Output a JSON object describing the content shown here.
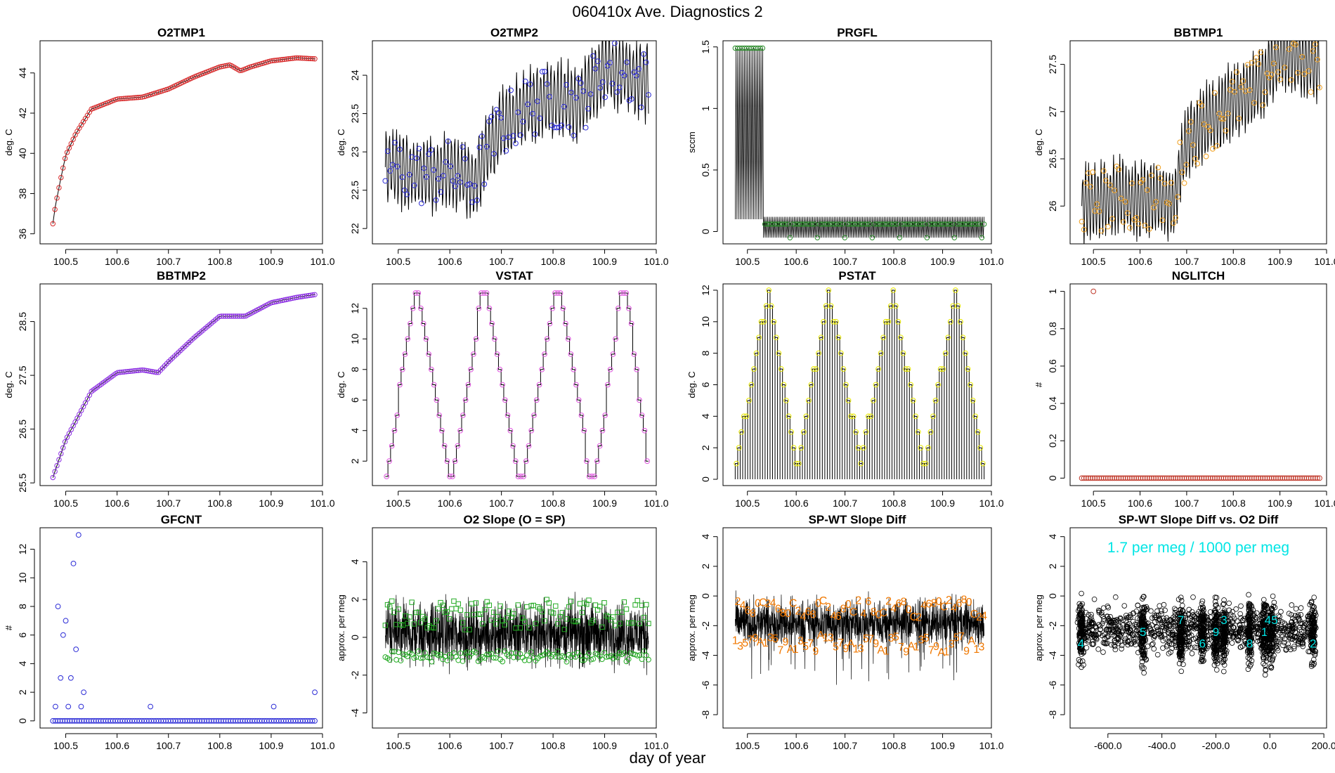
{
  "page": {
    "title": "060410x   Ave. Diagnostics 2",
    "xlabel": "day of year"
  },
  "chart_data": [
    {
      "id": "o2tmp1",
      "type": "line",
      "title": "O2TMP1",
      "ylabel": "deg. C",
      "xlim": [
        100.45,
        101.0
      ],
      "ylim": [
        35.5,
        45.6
      ],
      "xticks": [
        100.5,
        100.6,
        100.7,
        100.8,
        100.9,
        101.0
      ],
      "yticks": [
        36,
        38,
        40,
        42,
        44
      ],
      "marker": "circle",
      "marker_color": "#d62728",
      "x": [
        100.475,
        100.48,
        100.49,
        100.5,
        100.52,
        100.55,
        100.6,
        100.65,
        100.7,
        100.75,
        100.8,
        100.82,
        100.84,
        100.86,
        100.9,
        100.95,
        100.985
      ],
      "values": [
        36.5,
        37.4,
        38.7,
        39.9,
        41.0,
        42.2,
        42.7,
        42.8,
        43.2,
        43.8,
        44.3,
        44.4,
        44.1,
        44.3,
        44.6,
        44.75,
        44.7
      ]
    },
    {
      "id": "o2tmp2",
      "type": "line",
      "title": "O2TMP2",
      "ylabel": "deg. C",
      "xlim": [
        100.45,
        101.0
      ],
      "ylim": [
        21.8,
        24.45
      ],
      "xticks": [
        100.5,
        100.6,
        100.7,
        100.8,
        100.9,
        101.0
      ],
      "yticks": [
        22.0,
        22.5,
        23.0,
        23.5,
        24.0
      ],
      "marker": "circle",
      "marker_color": "#2b2bd6",
      "x": [
        100.475,
        100.5,
        100.55,
        100.6,
        100.65,
        100.67,
        100.7,
        100.75,
        100.8,
        100.85,
        100.9,
        100.95,
        100.985
      ],
      "values": [
        22.8,
        22.8,
        22.7,
        22.75,
        22.6,
        23.0,
        23.3,
        23.6,
        23.7,
        23.6,
        24.1,
        24.0,
        23.9
      ]
    },
    {
      "id": "prgfl",
      "type": "line",
      "title": "PRGFL",
      "ylabel": "sccm",
      "xlim": [
        100.45,
        101.0
      ],
      "ylim": [
        -0.1,
        1.55
      ],
      "xticks": [
        100.5,
        100.6,
        100.7,
        100.8,
        100.9,
        101.0
      ],
      "yticks": [
        0.0,
        0.5,
        1.0,
        1.5
      ],
      "marker": "circle",
      "marker_color": "#2a8a2a",
      "x": [
        100.475,
        100.5,
        100.53,
        100.535,
        100.6,
        100.7,
        100.8,
        100.9,
        100.985
      ],
      "values": [
        1.49,
        1.49,
        1.49,
        0.05,
        0.05,
        0.04,
        0.04,
        0.04,
        0.04
      ]
    },
    {
      "id": "bbtmp1",
      "type": "line",
      "title": "BBTMP1",
      "ylabel": "deg. C",
      "xlim": [
        100.45,
        101.0
      ],
      "ylim": [
        25.6,
        27.75
      ],
      "xticks": [
        100.5,
        100.6,
        100.7,
        100.8,
        100.9,
        101.0
      ],
      "yticks": [
        26.0,
        26.5,
        27.0,
        27.5
      ],
      "marker": "circle",
      "marker_color": "#f0a020",
      "x": [
        100.475,
        100.5,
        100.55,
        100.6,
        100.65,
        100.67,
        100.7,
        100.75,
        100.8,
        100.85,
        100.9,
        100.95,
        100.985
      ],
      "values": [
        26.0,
        26.05,
        26.1,
        26.05,
        26.1,
        26.0,
        26.7,
        26.9,
        27.1,
        27.25,
        27.6,
        27.55,
        27.5
      ]
    },
    {
      "id": "bbtmp2",
      "type": "line",
      "title": "BBTMP2",
      "ylabel": "deg. C",
      "xlim": [
        100.45,
        101.0
      ],
      "ylim": [
        25.45,
        29.2
      ],
      "xticks": [
        100.5,
        100.6,
        100.7,
        100.8,
        100.9,
        101.0
      ],
      "yticks": [
        25.5,
        26.5,
        27.5,
        28.5
      ],
      "marker": "circle",
      "marker_color": "#8a2be2",
      "x": [
        100.475,
        100.5,
        100.55,
        100.6,
        100.65,
        100.68,
        100.7,
        100.75,
        100.8,
        100.85,
        100.9,
        100.95,
        100.985
      ],
      "values": [
        25.6,
        26.3,
        27.2,
        27.55,
        27.6,
        27.55,
        27.75,
        28.2,
        28.6,
        28.6,
        28.85,
        28.95,
        29.0
      ]
    },
    {
      "id": "vstat",
      "type": "line",
      "title": "VSTAT",
      "ylabel": "deg. C",
      "xlim": [
        100.45,
        101.0
      ],
      "ylim": [
        0.4,
        13.6
      ],
      "xticks": [
        100.5,
        100.6,
        100.7,
        100.8,
        100.9,
        101.0
      ],
      "yticks": [
        2,
        4,
        6,
        8,
        10,
        12
      ],
      "marker": "circle",
      "marker_color": "#e055e0",
      "x": [
        100.475,
        100.53,
        100.535,
        100.6,
        100.605,
        100.66,
        100.67,
        100.73,
        100.74,
        100.8,
        100.81,
        100.87,
        100.88,
        100.93,
        100.94,
        100.985
      ],
      "values": [
        1,
        13,
        13,
        1,
        1,
        13,
        13,
        1,
        1,
        13,
        13,
        1,
        1,
        13,
        13,
        1
      ]
    },
    {
      "id": "pstat",
      "type": "line",
      "title": "PSTAT",
      "ylabel": "deg. C",
      "xlim": [
        100.45,
        101.0
      ],
      "ylim": [
        -0.4,
        12.4
      ],
      "xticks": [
        100.5,
        100.6,
        100.7,
        100.8,
        100.9,
        101.0
      ],
      "yticks": [
        0,
        2,
        4,
        6,
        8,
        10,
        12
      ],
      "marker": "circle",
      "marker_color": "#e8e800",
      "x": [
        100.475,
        100.54,
        100.6,
        100.665,
        100.73,
        100.795,
        100.86,
        100.925,
        100.985
      ],
      "values": [
        1,
        12,
        1,
        12,
        1,
        12,
        1,
        12,
        0
      ]
    },
    {
      "id": "nglitch",
      "type": "scatter",
      "title": "NGLITCH",
      "ylabel": "#",
      "xlim": [
        100.45,
        101.0
      ],
      "ylim": [
        -0.04,
        1.04
      ],
      "xticks": [
        100.5,
        100.6,
        100.7,
        100.8,
        100.9,
        101.0
      ],
      "yticks": [
        0.0,
        0.2,
        0.4,
        0.6,
        0.8,
        1.0
      ],
      "marker": "circle",
      "marker_color": "#c0392b",
      "x": [
        100.475,
        100.6,
        100.7,
        100.8,
        100.9,
        100.985
      ],
      "values": [
        0,
        0,
        0,
        0,
        0,
        0
      ],
      "outliers": [
        {
          "x": 100.5,
          "y": 1
        }
      ]
    },
    {
      "id": "gfcnt",
      "type": "scatter",
      "title": "GFCNT",
      "ylabel": "#",
      "xlim": [
        100.45,
        101.0
      ],
      "ylim": [
        -0.5,
        13.5
      ],
      "xticks": [
        100.5,
        100.6,
        100.7,
        100.8,
        100.9,
        101.0
      ],
      "yticks": [
        0,
        2,
        4,
        6,
        8,
        10,
        12
      ],
      "marker": "circle",
      "marker_color": "#2b2bd6",
      "x": [
        100.48,
        100.485,
        100.49,
        100.495,
        100.5,
        100.505,
        100.51,
        100.515,
        100.52,
        100.525,
        100.53,
        100.535,
        100.665,
        100.905,
        100.985
      ],
      "values": [
        1,
        8,
        3,
        6,
        7,
        1,
        3,
        11,
        5,
        13,
        1,
        2,
        1,
        1,
        2
      ],
      "baseline": 0
    },
    {
      "id": "o2slope",
      "type": "line",
      "title": "O2 Slope (O = SP)",
      "ylabel": "approx. per meg",
      "xlim": [
        100.45,
        101.0
      ],
      "ylim": [
        -4.8,
        5.8
      ],
      "xticks": [
        100.5,
        100.6,
        100.7,
        100.8,
        100.9,
        101.0
      ],
      "yticks": [
        -4,
        -2,
        0,
        2,
        4
      ],
      "marker": "square",
      "marker_color": "#22aa22",
      "series": [
        {
          "name": "SP",
          "marker": "square",
          "mean": 1.2,
          "spread": 0.8
        },
        {
          "name": "O",
          "marker": "circle",
          "mean": -1.0,
          "spread": 0.3
        }
      ],
      "noise_range": [
        -4,
        5
      ]
    },
    {
      "id": "spwt",
      "type": "line",
      "title": "SP-WT Slope Diff",
      "ylabel": "approx. per meg",
      "xlim": [
        100.45,
        101.0
      ],
      "ylim": [
        -8.9,
        4.6
      ],
      "xticks": [
        100.5,
        100.6,
        100.7,
        100.8,
        100.9,
        101.0
      ],
      "yticks": [
        -8,
        -6,
        -4,
        -2,
        0,
        2,
        4
      ],
      "marker_color": "#f07800",
      "labels": [
        "1",
        "2",
        "3",
        "4",
        "5",
        "6",
        "7",
        "8",
        "9",
        "0",
        "A",
        "C"
      ],
      "noise_range": [
        -8,
        4
      ]
    },
    {
      "id": "scatter",
      "type": "scatter",
      "title": "SP-WT Slope Diff vs. O2 Diff",
      "ylabel": "approx. per meg",
      "xlim": [
        -740,
        210
      ],
      "ylim": [
        -8.9,
        4.6
      ],
      "xticks": [
        -600,
        -400,
        -200,
        0,
        200
      ],
      "yticks": [
        -8,
        -6,
        -4,
        -2,
        0,
        2,
        4
      ],
      "marker": "circle",
      "marker_color": "#000000",
      "annotation": "1.7 per meg / 1000 per meg",
      "annotation_color": "#00e5e5",
      "clusters": [
        -700,
        -470,
        -330,
        -250,
        -200,
        -170,
        -75,
        -20,
        5,
        160
      ],
      "cluster_labels": [
        "4",
        "5",
        "7",
        "6",
        "9",
        "3",
        "8",
        "1",
        "45",
        "2"
      ],
      "slope": 0.0017
    }
  ]
}
